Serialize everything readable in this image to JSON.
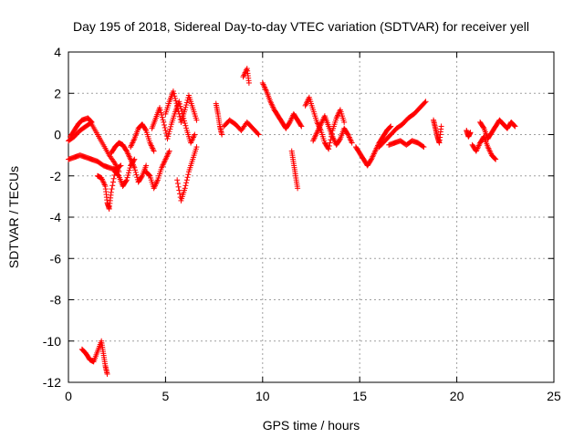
{
  "chart_data": {
    "type": "scatter",
    "title": "Day 195 of 2018, Sidereal Day-to-day VTEC variation (SDTVAR) for receiver yell",
    "xlabel": "GPS time / hours",
    "ylabel": "SDTVAR / TECUs",
    "xlim": [
      0,
      25
    ],
    "ylim": [
      -12,
      4
    ],
    "xticks": [
      0,
      5,
      10,
      15,
      20,
      25
    ],
    "yticks": [
      -12,
      -10,
      -8,
      -6,
      -4,
      -2,
      0,
      2,
      4
    ],
    "xtick_labels": [
      "0",
      "5",
      "10",
      "15",
      "20",
      "25"
    ],
    "ytick_labels": [
      "-12",
      "-10",
      "-8",
      "-6",
      "-4",
      "-2",
      "0",
      "2",
      "4"
    ],
    "grid": true,
    "marker": "+",
    "color": "#ff0000",
    "series": [
      {
        "name": "SDTVAR",
        "segments": [
          {
            "x": [
              0.0,
              0.3,
              0.6,
              0.9,
              1.2,
              1.0,
              0.7,
              0.5,
              0.3,
              0.1
            ],
            "y": [
              -0.3,
              -0.1,
              0.2,
              0.4,
              0.6,
              0.8,
              0.7,
              0.5,
              0.2,
              -0.1
            ]
          },
          {
            "x": [
              1.2,
              1.5,
              1.8,
              2.1,
              2.4,
              2.6
            ],
            "y": [
              0.5,
              0.0,
              -0.5,
              -1.0,
              -1.4,
              -1.8
            ]
          },
          {
            "x": [
              0.0,
              0.3,
              0.6,
              0.9,
              1.2,
              1.5,
              1.8,
              2.1,
              2.4,
              2.7
            ],
            "y": [
              -1.2,
              -1.1,
              -1.0,
              -1.1,
              -1.2,
              -1.3,
              -1.5,
              -1.6,
              -1.7,
              -1.5
            ]
          },
          {
            "x": [
              1.5,
              1.7,
              1.9,
              2.0,
              2.1,
              2.2,
              2.4,
              2.6,
              2.8,
              3.0,
              3.2,
              3.4
            ],
            "y": [
              -2.0,
              -2.1,
              -2.5,
              -3.3,
              -3.6,
              -2.8,
              -1.8,
              -2.0,
              -2.5,
              -2.2,
              -1.5,
              -1.2
            ]
          },
          {
            "x": [
              2.2,
              2.4,
              2.6,
              2.8,
              3.0,
              3.2,
              3.4,
              3.6,
              3.8,
              4.0
            ],
            "y": [
              -0.9,
              -0.6,
              -0.4,
              -0.5,
              -0.8,
              -1.2,
              -1.6,
              -2.3,
              -2.0,
              -1.5
            ]
          },
          {
            "x": [
              3.2,
              3.4,
              3.6,
              3.8,
              4.0,
              4.2,
              4.4
            ],
            "y": [
              -0.6,
              -0.2,
              0.3,
              0.5,
              0.2,
              -0.4,
              -0.8
            ]
          },
          {
            "x": [
              4.0,
              4.2,
              4.4,
              4.6,
              4.8,
              5.0,
              5.2
            ],
            "y": [
              -1.8,
              -2.0,
              -2.6,
              -2.2,
              -1.6,
              -1.2,
              -0.8
            ]
          },
          {
            "x": [
              4.3,
              4.5,
              4.7,
              4.9,
              5.1,
              5.3,
              5.5,
              5.7,
              5.9,
              6.1,
              6.3,
              6.5
            ],
            "y": [
              0.3,
              0.8,
              1.3,
              0.6,
              -0.2,
              0.5,
              1.1,
              1.6,
              0.9,
              0.2,
              -0.4,
              0.0
            ]
          },
          {
            "x": [
              5.0,
              5.2,
              5.4,
              5.6,
              5.8,
              6.0,
              6.2,
              6.4,
              6.6
            ],
            "y": [
              1.0,
              1.6,
              2.1,
              1.4,
              0.6,
              1.2,
              1.9,
              1.3,
              0.7
            ]
          },
          {
            "x": [
              5.6,
              5.8,
              6.0,
              6.2,
              6.4,
              6.6
            ],
            "y": [
              -2.2,
              -3.2,
              -2.6,
              -1.8,
              -1.2,
              -0.6
            ]
          },
          {
            "x": [
              7.6,
              7.7,
              7.8,
              7.9
            ],
            "y": [
              1.5,
              1.0,
              0.4,
              0.0
            ]
          },
          {
            "x": [
              8.0,
              8.3,
              8.6,
              8.9,
              9.2,
              9.5,
              9.8
            ],
            "y": [
              0.4,
              0.7,
              0.5,
              0.2,
              0.6,
              0.3,
              0.0
            ]
          },
          {
            "x": [
              9.0,
              9.2,
              9.3
            ],
            "y": [
              2.8,
              3.2,
              2.5
            ]
          },
          {
            "x": [
              10.0,
              10.2,
              10.4,
              10.6,
              10.8,
              11.0,
              11.2,
              11.4,
              11.6,
              11.8,
              12.0
            ],
            "y": [
              2.5,
              2.1,
              1.6,
              1.2,
              0.9,
              0.6,
              0.3,
              0.6,
              1.0,
              0.7,
              0.4
            ]
          },
          {
            "x": [
              11.5,
              11.6,
              11.7,
              11.8
            ],
            "y": [
              -0.8,
              -1.4,
              -2.0,
              -2.6
            ]
          },
          {
            "x": [
              12.2,
              12.4,
              12.6,
              12.8,
              13.0,
              13.2,
              13.4,
              13.6,
              13.8,
              14.0,
              14.2
            ],
            "y": [
              1.4,
              1.8,
              1.2,
              0.6,
              0.2,
              -0.4,
              -0.7,
              0.2,
              0.8,
              1.2,
              0.6
            ]
          },
          {
            "x": [
              12.6,
              12.8,
              13.0,
              13.2,
              13.4,
              13.6,
              13.8,
              14.0,
              14.2,
              14.4,
              14.6
            ],
            "y": [
              -0.3,
              0.1,
              0.5,
              0.9,
              0.4,
              -0.1,
              -0.5,
              -0.2,
              0.3,
              0.0,
              -0.4
            ]
          },
          {
            "x": [
              14.8,
              15.0,
              15.2,
              15.4,
              15.6,
              15.8,
              16.0,
              16.2,
              16.4,
              16.6
            ],
            "y": [
              -0.6,
              -0.9,
              -1.2,
              -1.5,
              -1.2,
              -0.8,
              -0.4,
              -0.1,
              0.2,
              0.4
            ]
          },
          {
            "x": [
              16.0,
              16.3,
              16.6,
              16.9,
              17.2,
              17.5,
              17.8,
              18.1,
              18.4
            ],
            "y": [
              -0.6,
              -0.3,
              0.0,
              0.3,
              0.5,
              0.8,
              1.0,
              1.3,
              1.6
            ]
          },
          {
            "x": [
              16.5,
              16.8,
              17.1,
              17.4,
              17.7,
              18.0,
              18.3
            ],
            "y": [
              -0.5,
              -0.4,
              -0.3,
              -0.5,
              -0.3,
              -0.4,
              -0.6
            ]
          },
          {
            "x": [
              18.8,
              18.9,
              19.0,
              19.1,
              19.2
            ],
            "y": [
              0.7,
              0.3,
              -0.1,
              -0.4,
              0.4
            ]
          },
          {
            "x": [
              20.5,
              20.6,
              20.7
            ],
            "y": [
              0.2,
              -0.1,
              0.1
            ]
          },
          {
            "x": [
              20.8,
              21.0,
              21.2,
              21.4,
              21.6,
              21.8,
              22.0
            ],
            "y": [
              -0.5,
              -0.8,
              -0.4,
              -0.1,
              -0.6,
              -1.0,
              -1.2
            ]
          },
          {
            "x": [
              21.2,
              21.4,
              21.6,
              21.8,
              22.0,
              22.2,
              22.4,
              22.6,
              22.8,
              23.0
            ],
            "y": [
              0.6,
              0.3,
              -0.2,
              0.1,
              0.4,
              0.7,
              0.5,
              0.3,
              0.6,
              0.4
            ]
          },
          {
            "x": [
              0.7,
              0.9,
              1.1,
              1.3,
              1.5,
              1.7,
              1.8,
              1.9,
              2.0
            ],
            "y": [
              -10.4,
              -10.6,
              -10.9,
              -11.0,
              -10.5,
              -10.0,
              -10.6,
              -11.2,
              -11.6
            ]
          }
        ]
      }
    ]
  }
}
